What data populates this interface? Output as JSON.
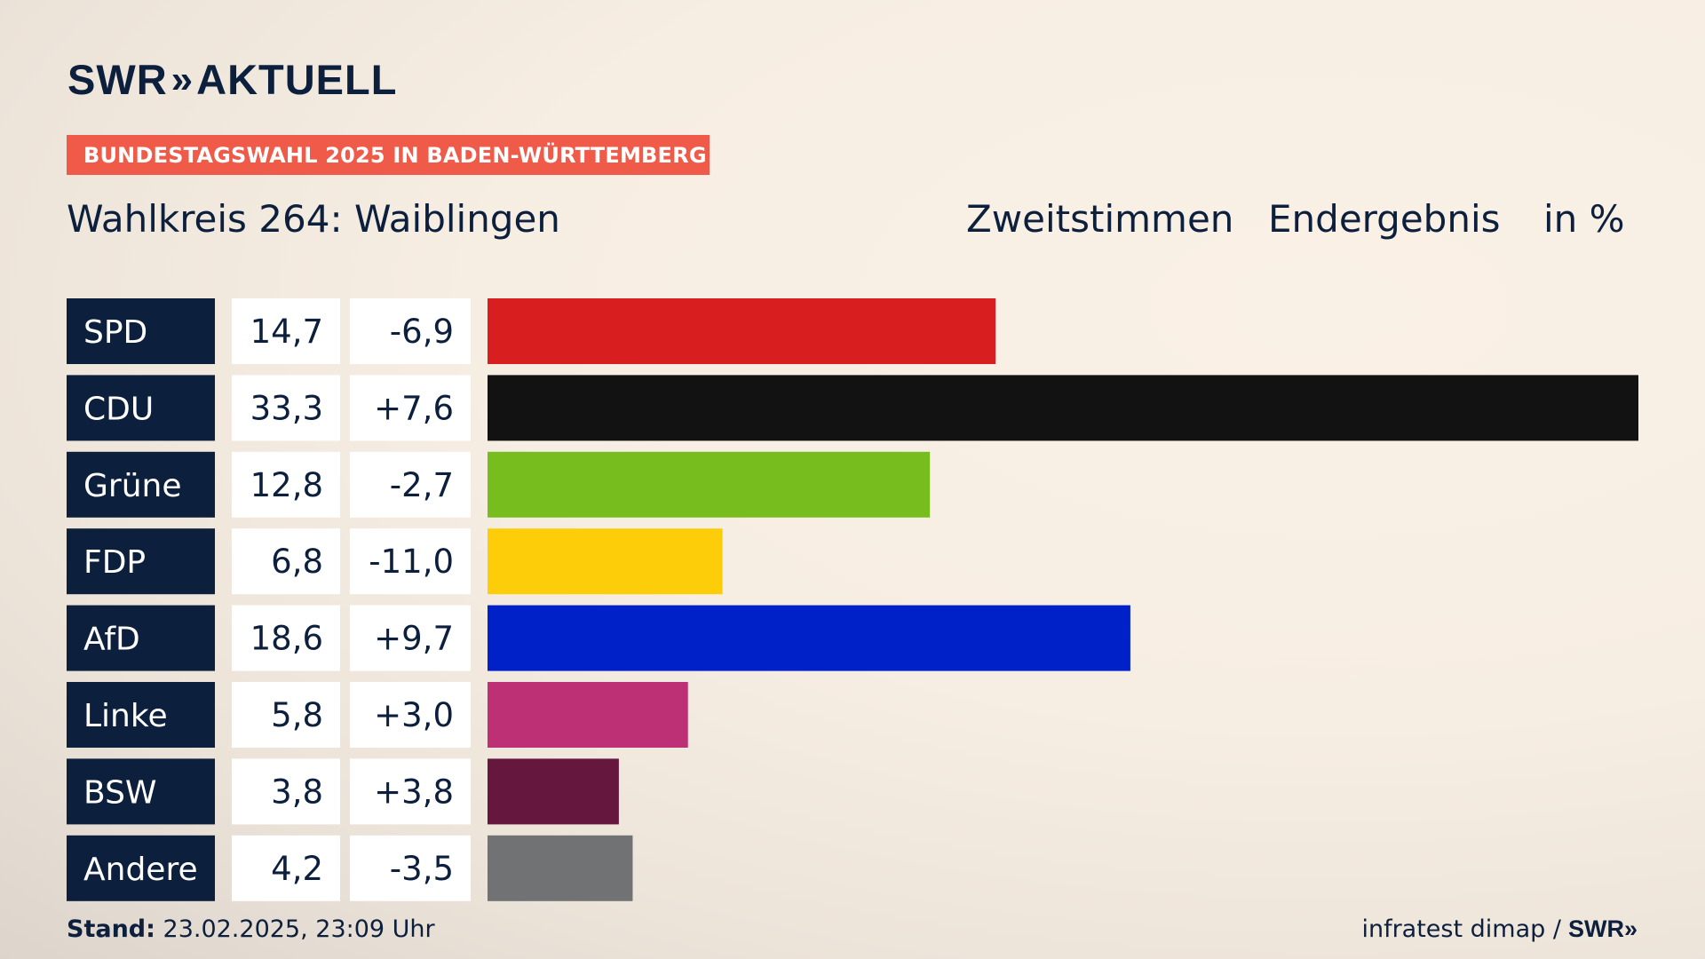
{
  "header": {
    "logo_text": "SWR",
    "logo_chevrons": "»",
    "logo_product": "AKTUELL",
    "banner": "BUNDESTAGSWAHL 2025 IN BADEN-WÜRTTEMBERG",
    "district": "Wahlkreis 264: Waiblingen",
    "vote_type": "Zweitstimmen",
    "result_type": "Endergebnis",
    "unit": "in %"
  },
  "footer": {
    "stand_label": "Stand:",
    "stand_value": "23.02.2025, 23:09 Uhr",
    "source": "infratest dimap /",
    "source_logo": "SWR",
    "source_chevrons": "»"
  },
  "chart_data": {
    "type": "bar",
    "orientation": "horizontal",
    "categories": [
      "SPD",
      "CDU",
      "Grüne",
      "FDP",
      "AfD",
      "Linke",
      "BSW",
      "Andere"
    ],
    "values": [
      14.7,
      33.3,
      12.8,
      6.8,
      18.6,
      5.8,
      3.8,
      4.2
    ],
    "value_labels": [
      "14,7",
      "33,3",
      "12,8",
      "6,8",
      "18,6",
      "5,8",
      "3,8",
      "4,2"
    ],
    "change_labels": [
      "-6,9",
      "+7,6",
      "-2,7",
      "-11,0",
      "+9,7",
      "+3,0",
      "+3,8",
      "-3,5"
    ],
    "colors": [
      "#d81e1e",
      "#121212",
      "#78bd1e",
      "#fecd0a",
      "#0020c8",
      "#bd3075",
      "#65173d",
      "#717274"
    ],
    "label_bg": "#0c1f3d",
    "xlim": [
      0,
      33.3
    ],
    "grid": false,
    "legend": "none"
  }
}
